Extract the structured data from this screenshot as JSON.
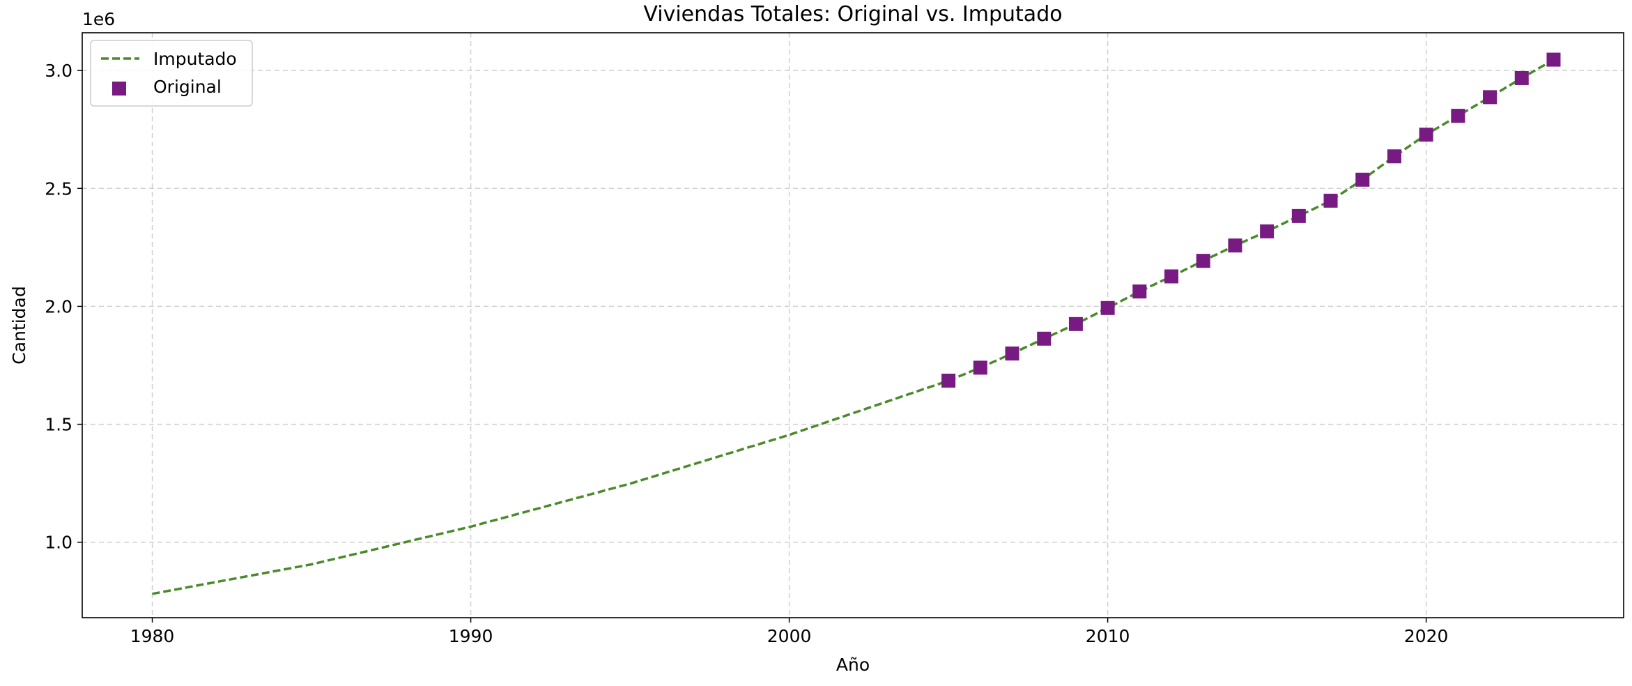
{
  "chart_data": {
    "type": "line",
    "title": "Viviendas Totales: Original vs. Imputado",
    "xlabel": "Año",
    "ylabel": "Cantidad",
    "y_offset_label": "1e6",
    "xlim": [
      1977.8,
      2026.2
    ],
    "ylim": [
      680000,
      3160000
    ],
    "x_ticks": [
      1980,
      1990,
      2000,
      2010,
      2020
    ],
    "y_ticks": [
      1000000,
      1500000,
      2000000,
      2500000,
      3000000
    ],
    "y_tick_labels": [
      "1.0",
      "1.5",
      "2.0",
      "2.5",
      "3.0"
    ],
    "grid": true,
    "legend_position": "upper-left",
    "series": [
      {
        "name": "Imputado",
        "style": "dashed-line",
        "color": "#4a8a2a",
        "x": [
          1980,
          1985,
          1990,
          1995,
          2000,
          2005,
          2006,
          2007,
          2008,
          2009,
          2010,
          2011,
          2012,
          2013,
          2014,
          2015,
          2016,
          2017,
          2018,
          2019,
          2020,
          2021,
          2022,
          2023,
          2024
        ],
        "y": [
          781000,
          906000,
          1066000,
          1248000,
          1455000,
          1685000,
          1740000,
          1800000,
          1863000,
          1925000,
          1993000,
          2063000,
          2127000,
          2193000,
          2258000,
          2318000,
          2383000,
          2448000,
          2537000,
          2636000,
          2728000,
          2808000,
          2887000,
          2968000,
          3046000
        ]
      },
      {
        "name": "Original",
        "style": "square-markers",
        "color": "#771a82",
        "x": [
          2005,
          2006,
          2007,
          2008,
          2009,
          2010,
          2011,
          2012,
          2013,
          2014,
          2015,
          2016,
          2017,
          2018,
          2019,
          2020,
          2021,
          2022,
          2023,
          2024
        ],
        "y": [
          1685000,
          1740000,
          1800000,
          1863000,
          1925000,
          1993000,
          2063000,
          2127000,
          2193000,
          2258000,
          2318000,
          2383000,
          2448000,
          2537000,
          2636000,
          2728000,
          2808000,
          2887000,
          2968000,
          3046000
        ]
      }
    ]
  }
}
